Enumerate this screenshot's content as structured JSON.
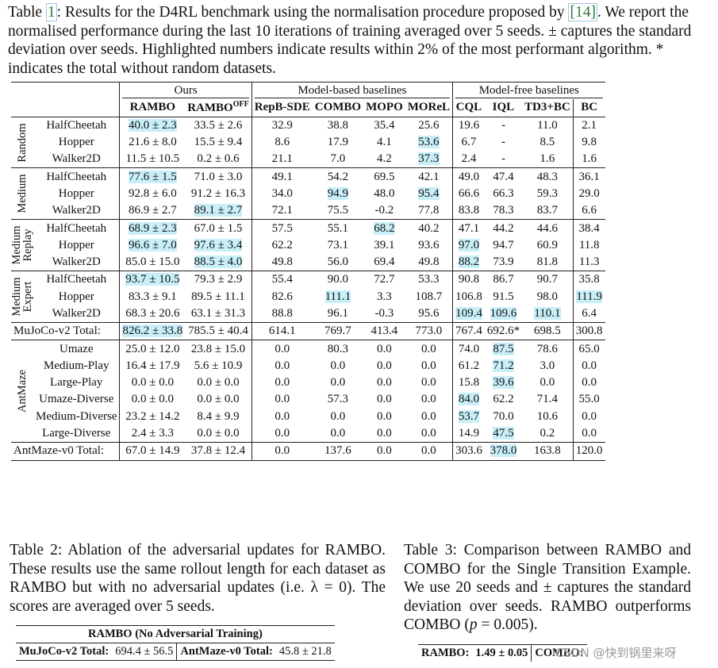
{
  "caption1": {
    "prefix": "Table ",
    "num": "1",
    "text1": ": Results for the D4RL benchmark using the normalisation procedure proposed by ",
    "ref": "[14]",
    "text2": ". We report the normalised performance during the last 10 iterations of training averaged over 5 seeds. ± captures the standard deviation over seeds. Highlighted numbers indicate results within 2% of the most performant algorithm. * indicates the total without random datasets."
  },
  "table1": {
    "group_headers": [
      "Ours",
      "Model-based baselines",
      "Model-free baselines"
    ],
    "columns": [
      "RAMBO",
      "RAMBO",
      "OFF",
      "RepB-SDE",
      "COMBO",
      "MOPO",
      "MOReL",
      "CQL",
      "IQL",
      "TD3+BC",
      "BC"
    ],
    "blocks": [
      {
        "label": "Random",
        "rows": [
          {
            "env": "HalfCheetah",
            "vals": [
              "40.0 ± 2.3",
              "33.5 ± 2.6",
              "32.9",
              "38.8",
              "35.4",
              "25.6",
              "19.6",
              "-",
              "11.0",
              "2.1"
            ],
            "hl": [
              0
            ]
          },
          {
            "env": "Hopper",
            "vals": [
              "21.6 ± 8.0",
              "15.5 ± 9.4",
              "8.6",
              "17.9",
              "4.1",
              "53.6",
              "6.7",
              "-",
              "8.5",
              "9.8"
            ],
            "hl": [
              5
            ]
          },
          {
            "env": "Walker2D",
            "vals": [
              "11.5 ± 10.5",
              "0.2 ± 0.6",
              "21.1",
              "7.0",
              "4.2",
              "37.3",
              "2.4",
              "-",
              "1.6",
              "1.6"
            ],
            "hl": [
              5
            ]
          }
        ]
      },
      {
        "label": "Medium",
        "rows": [
          {
            "env": "HalfCheetah",
            "vals": [
              "77.6 ± 1.5",
              "71.0 ± 3.0",
              "49.1",
              "54.2",
              "69.5",
              "42.1",
              "49.0",
              "47.4",
              "48.3",
              "36.1"
            ],
            "hl": [
              0
            ]
          },
          {
            "env": "Hopper",
            "vals": [
              "92.8 ± 6.0",
              "91.2 ± 16.3",
              "34.0",
              "94.9",
              "48.0",
              "95.4",
              "66.6",
              "66.3",
              "59.3",
              "29.0"
            ],
            "hl": [
              3,
              5
            ]
          },
          {
            "env": "Walker2D",
            "vals": [
              "86.9 ± 2.7",
              "89.1 ± 2.7",
              "72.1",
              "75.5",
              "-0.2",
              "77.8",
              "83.8",
              "78.3",
              "83.7",
              "6.6"
            ],
            "hl": [
              1
            ]
          }
        ]
      },
      {
        "label": "Medium\nReplay",
        "rows": [
          {
            "env": "HalfCheetah",
            "vals": [
              "68.9 ± 2.3",
              "67.0 ± 1.5",
              "57.5",
              "55.1",
              "68.2",
              "40.2",
              "47.1",
              "44.2",
              "44.6",
              "38.4"
            ],
            "hl": [
              0,
              4
            ]
          },
          {
            "env": "Hopper",
            "vals": [
              "96.6 ± 7.0",
              "97.6 ± 3.4",
              "62.2",
              "73.1",
              "39.1",
              "93.6",
              "97.0",
              "94.7",
              "60.9",
              "11.8"
            ],
            "hl": [
              0,
              1,
              6
            ]
          },
          {
            "env": "Walker2D",
            "vals": [
              "85.0 ± 15.0",
              "88.5 ± 4.0",
              "49.8",
              "56.0",
              "69.4",
              "49.8",
              "88.2",
              "73.9",
              "81.8",
              "11.3"
            ],
            "hl": [
              1,
              6
            ]
          }
        ]
      },
      {
        "label": "Medium\nExpert",
        "rows": [
          {
            "env": "HalfCheetah",
            "vals": [
              "93.7 ± 10.5",
              "79.3 ± 2.9",
              "55.4",
              "90.0",
              "72.7",
              "53.3",
              "90.8",
              "86.7",
              "90.7",
              "35.8"
            ],
            "hl": [
              0
            ]
          },
          {
            "env": "Hopper",
            "vals": [
              "83.3 ± 9.1",
              "89.5 ± 11.1",
              "82.6",
              "111.1",
              "3.3",
              "108.7",
              "106.8",
              "91.5",
              "98.0",
              "111.9"
            ],
            "hl": [
              3,
              9
            ]
          },
          {
            "env": "Walker2D",
            "vals": [
              "68.3 ± 20.6",
              "63.1 ± 31.3",
              "88.8",
              "96.1",
              "-0.3",
              "95.6",
              "109.4",
              "109.6",
              "110.1",
              "6.4"
            ],
            "hl": [
              6,
              7,
              8
            ]
          }
        ]
      }
    ],
    "mujoco_total": {
      "label": "MuJoCo-v2 Total:",
      "vals": [
        "826.2 ± 33.8",
        "785.5 ± 40.4",
        "614.1",
        "769.7",
        "413.4",
        "773.0",
        "767.4",
        "692.6*",
        "698.5",
        "300.8"
      ],
      "hl": [
        0
      ]
    },
    "antmaze": {
      "label": "AntMaze",
      "rows": [
        {
          "env": "Umaze",
          "vals": [
            "25.0 ± 12.0",
            "23.8 ± 15.0",
            "0.0",
            "80.3",
            "0.0",
            "0.0",
            "74.0",
            "87.5",
            "78.6",
            "65.0"
          ],
          "hl": [
            7
          ]
        },
        {
          "env": "Medium-Play",
          "vals": [
            "16.4 ± 17.9",
            "5.6 ± 10.9",
            "0.0",
            "0.0",
            "0.0",
            "0.0",
            "61.2",
            "71.2",
            "3.0",
            "0.0"
          ],
          "hl": [
            7
          ]
        },
        {
          "env": "Large-Play",
          "vals": [
            "0.0 ± 0.0",
            "0.0 ± 0.0",
            "0.0",
            "0.0",
            "0.0",
            "0.0",
            "15.8",
            "39.6",
            "0.0",
            "0.0"
          ],
          "hl": [
            7
          ]
        },
        {
          "env": "Umaze-Diverse",
          "vals": [
            "0.0 ± 0.0",
            "0.0 ± 0.0",
            "0.0",
            "57.3",
            "0.0",
            "0.0",
            "84.0",
            "62.2",
            "71.4",
            "55.0"
          ],
          "hl": [
            6
          ]
        },
        {
          "env": "Medium-Diverse",
          "vals": [
            "23.2 ± 14.2",
            "8.4 ± 9.9",
            "0.0",
            "0.0",
            "0.0",
            "0.0",
            "53.7",
            "70.0",
            "10.6",
            "0.0"
          ],
          "hl": [
            6
          ]
        },
        {
          "env": "Large-Diverse",
          "vals": [
            "2.4 ± 3.3",
            "0.0 ± 0.0",
            "0.0",
            "0.0",
            "0.0",
            "0.0",
            "14.9",
            "47.5",
            "0.2",
            "0.0"
          ],
          "hl": [
            7
          ]
        }
      ]
    },
    "antmaze_total": {
      "label": "AntMaze-v0 Total:",
      "vals": [
        "67.0 ± 14.9",
        "37.8 ± 12.4",
        "0.0",
        "137.6",
        "0.0",
        "0.0",
        "303.6",
        "378.0",
        "163.8",
        "120.0"
      ],
      "hl": [
        7
      ]
    }
  },
  "caption2": "Table 2: Ablation of the adversarial updates for RAMBO. These results use the same rollout length for each dataset as RAMBO but with no adversarial updates (i.e. λ = 0). The scores are averaged over 5 seeds.",
  "table2": {
    "header": "RAMBO (No Adversarial Training)",
    "mujoco_label": "MuJoCo-v2 Total:",
    "mujoco_val": "694.4 ± 56.5",
    "antmaze_label": "AntMaze-v0 Total:",
    "antmaze_val": "45.8 ± 21.8"
  },
  "caption3": {
    "before": "Table 3: Comparison between RAMBO and COMBO for the Single Transition Example. We use 20 seeds and ± captures the standard deviation over seeds. RAMBO outperforms COMBO (",
    "pvar": "p",
    "after": " = 0.005)."
  },
  "table3": {
    "rambo_label": "RAMBO:",
    "rambo_val": "1.49 ± 0.05",
    "combo_label": "COMBO:"
  },
  "watermark": "CSDN @快到锅里来呀",
  "colors": {
    "highlight": "#c8eef8",
    "ref_border": "#9fc7e8"
  }
}
